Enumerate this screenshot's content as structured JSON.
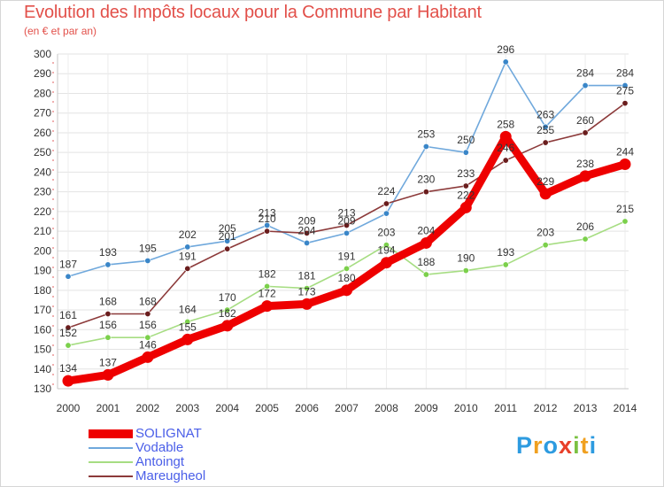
{
  "chart_data": {
    "type": "line",
    "title": "Evolution des Impôts locaux pour la Commune par Habitant",
    "subtitle": "(en € et par an)",
    "xlabel": "",
    "ylabel": "",
    "x": [
      "2000",
      "2001",
      "2002",
      "2003",
      "2004",
      "2005",
      "2006",
      "2007",
      "2008",
      "2009",
      "2010",
      "2011",
      "2012",
      "2013",
      "2014"
    ],
    "ylim": [
      130,
      300
    ],
    "yticks": [
      130,
      140,
      150,
      160,
      170,
      180,
      190,
      200,
      210,
      220,
      230,
      240,
      250,
      260,
      270,
      280,
      290,
      300
    ],
    "grid": true,
    "legend_position": "bottom-left",
    "series": [
      {
        "name": "Vodable",
        "color": "#6fa8dc",
        "marker": "#3a86c8",
        "values": [
          187,
          193,
          195,
          202,
          205,
          213,
          204,
          209,
          219,
          253,
          250,
          296,
          263,
          284,
          284
        ],
        "labels": [
          "187",
          "193",
          "195",
          "202",
          "205",
          "213",
          "204",
          "209",
          "",
          "253",
          "250",
          "296",
          "263",
          "284",
          "284"
        ]
      },
      {
        "name": "Antoingt",
        "color": "#a6dd82",
        "marker": "#7bd04b",
        "values": [
          152,
          156,
          156,
          164,
          170,
          182,
          181,
          191,
          203,
          188,
          190,
          193,
          203,
          206,
          215
        ],
        "labels": [
          "152",
          "156",
          "156",
          "164",
          "170",
          "182",
          "181",
          "191",
          "203",
          "188",
          "190",
          "193",
          "203",
          "206",
          "215"
        ]
      },
      {
        "name": "Mareugheol",
        "color": "#8c3a3a",
        "marker": "#6a1d1d",
        "values": [
          161,
          168,
          168,
          191,
          201,
          210,
          209,
          213,
          224,
          230,
          233,
          246,
          255,
          260,
          275
        ],
        "labels": [
          "161",
          "168",
          "168",
          "191",
          "201",
          "210",
          "209",
          "213",
          "224",
          "230",
          "233",
          "246",
          "255",
          "260",
          "275"
        ]
      },
      {
        "name": "SOLIGNAT",
        "color": "#ee0000",
        "marker": "#ee0000",
        "values": [
          134,
          137,
          146,
          155,
          162,
          172,
          173,
          180,
          194,
          204,
          222,
          258,
          229,
          238,
          244
        ],
        "labels": [
          "134",
          "137",
          "146",
          "155",
          "162",
          "172",
          "173",
          "180",
          "194",
          "204",
          "222",
          "258",
          "229",
          "238",
          "244"
        ]
      }
    ]
  },
  "legend": [
    {
      "name": "SOLIGNAT",
      "color": "#ee0000",
      "thick": true
    },
    {
      "name": "Vodable",
      "color": "#6fa8dc",
      "thick": false
    },
    {
      "name": "Antoingt",
      "color": "#a6dd82",
      "thick": false
    },
    {
      "name": "Mareugheol",
      "color": "#8c3a3a",
      "thick": false
    }
  ],
  "logo": {
    "letters": [
      "P",
      "r",
      "o",
      "x",
      "i",
      "t",
      "i"
    ],
    "colors": [
      "#2d9be0",
      "#f0a020",
      "#2d9be0",
      "#e8402a",
      "#7bc142",
      "#f0a020",
      "#2d9be0"
    ]
  }
}
